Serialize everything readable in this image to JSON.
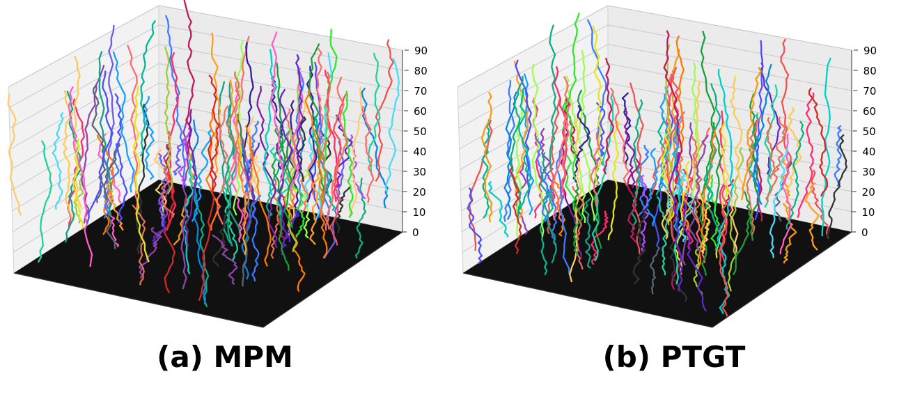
{
  "chart_data": [
    {
      "type": "line3d",
      "caption": "(a) MPM",
      "zlim": [
        0,
        90
      ],
      "z_ticks": [
        "0",
        "10",
        "20",
        "30",
        "40",
        "50",
        "60",
        "70",
        "80",
        "90"
      ],
      "track_count": 130,
      "grid": true,
      "floor_color": "#111111",
      "seed": 11
    },
    {
      "type": "line3d",
      "caption": "(b) PTGT",
      "zlim": [
        0,
        90
      ],
      "z_ticks": [
        "0",
        "10",
        "20",
        "30",
        "40",
        "50",
        "60",
        "70",
        "80",
        "90"
      ],
      "track_count": 135,
      "grid": true,
      "floor_color": "#111111",
      "seed": 29
    }
  ]
}
